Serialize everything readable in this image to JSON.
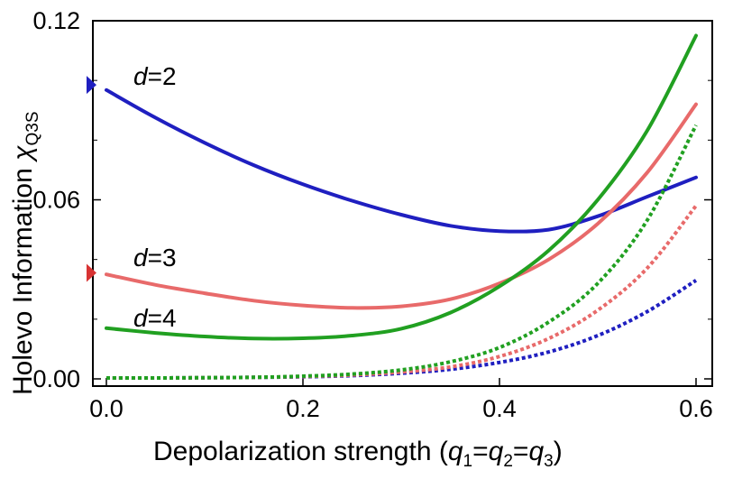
{
  "chart_data": {
    "type": "line",
    "title": "",
    "xlabel": "Depolarization strength",
    "xlabel_math": {
      "open": "(",
      "var": "q",
      "eq": "=",
      "close": ")",
      "subscripts": [
        "1",
        "2",
        "3"
      ]
    },
    "ylabel": "Holevo Information",
    "ylabel_math": {
      "symbol": "χ",
      "subscript": "Q3S"
    },
    "xlim": [
      0,
      0.6
    ],
    "ylim": [
      0,
      0.12
    ],
    "xticks": [
      0.0,
      0.2,
      0.4,
      0.6
    ],
    "xtick_labels": [
      "0.0",
      "0.2",
      "0.4",
      "0.6"
    ],
    "yticks": [
      0.0,
      0.06,
      0.12
    ],
    "ytick_labels": [
      "0.00",
      "0.06",
      "0.12"
    ],
    "grid": false,
    "x": [
      0,
      0.05,
      0.1,
      0.15,
      0.2,
      0.25,
      0.3,
      0.35,
      0.4,
      0.45,
      0.5,
      0.55,
      0.6
    ],
    "series": [
      {
        "name": "d=2",
        "label_text": "2",
        "style": "solid",
        "color": "#1f1fc0",
        "values": [
          0.0968,
          0.0875,
          0.0791,
          0.0716,
          0.0652,
          0.0597,
          0.055,
          0.0513,
          0.0495,
          0.05,
          0.0545,
          0.061,
          0.0675
        ]
      },
      {
        "name": "d=3",
        "label_text": "3",
        "style": "solid",
        "color": "#e86a6a",
        "values": [
          0.035,
          0.0315,
          0.0287,
          0.0262,
          0.0246,
          0.0238,
          0.0243,
          0.0267,
          0.032,
          0.04,
          0.052,
          0.069,
          0.092
        ]
      },
      {
        "name": "d=4",
        "label_text": "4",
        "style": "solid",
        "color": "#21a021",
        "values": [
          0.017,
          0.0154,
          0.0142,
          0.0135,
          0.0136,
          0.0145,
          0.0168,
          0.0222,
          0.031,
          0.043,
          0.06,
          0.083,
          0.115
        ]
      },
      {
        "name": "d=2 (dotted)",
        "style": "dotted",
        "color": "#1f1fc0",
        "values": [
          0.0003,
          0.0003,
          0.0004,
          0.0005,
          0.0007,
          0.0011,
          0.0019,
          0.0032,
          0.0055,
          0.009,
          0.0145,
          0.0225,
          0.033
        ]
      },
      {
        "name": "d=3 (dotted)",
        "style": "dotted",
        "color": "#e86a6a",
        "values": [
          0.0003,
          0.0003,
          0.0004,
          0.0005,
          0.0008,
          0.0013,
          0.0023,
          0.004,
          0.0075,
          0.0135,
          0.023,
          0.037,
          0.058
        ]
      },
      {
        "name": "d=4 (dotted)",
        "style": "dotted",
        "color": "#21a021",
        "values": [
          0.0003,
          0.0003,
          0.0004,
          0.0005,
          0.0009,
          0.0016,
          0.003,
          0.0057,
          0.0105,
          0.019,
          0.032,
          0.053,
          0.085
        ]
      }
    ],
    "series_label_prefix": "d",
    "series_label_eq": "=",
    "markers": [
      {
        "name": "d=2 limit marker",
        "y": 0.0985,
        "color": "#1f1fc0"
      },
      {
        "name": "d=3 limit marker",
        "y": 0.0355,
        "color": "#d83333"
      }
    ]
  }
}
